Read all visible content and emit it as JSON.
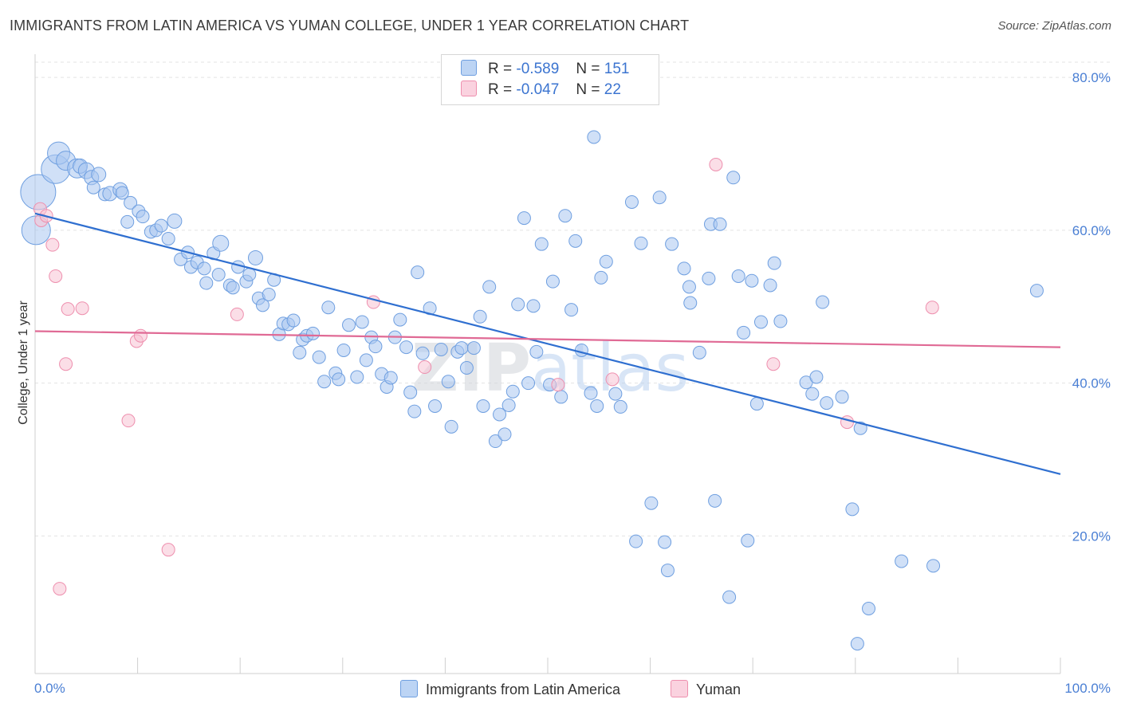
{
  "title": "IMMIGRANTS FROM LATIN AMERICA VS YUMAN COLLEGE, UNDER 1 YEAR CORRELATION CHART",
  "source": "Source: ZipAtlas.com",
  "watermark": {
    "part1": "ZIP",
    "part2": "atlas"
  },
  "legend": {
    "rows": [
      {
        "r_label": "R =",
        "r_value": "-0.589",
        "n_label": "N =",
        "n_value": "151"
      },
      {
        "r_label": "R =",
        "r_value": "-0.047",
        "n_label": "N =",
        "n_value": "22"
      }
    ]
  },
  "colors": {
    "blue_fill": "#a9c7f0",
    "blue_stroke": "#6f9fe0",
    "blue_line": "#2f6fd0",
    "pink_fill": "#f7c3d3",
    "pink_stroke": "#ee8fae",
    "pink_line": "#e06a95",
    "tick_text": "#4a7fd4",
    "grid": "#e3e3e3"
  },
  "chart_data": {
    "type": "scatter",
    "title": "IMMIGRANTS FROM LATIN AMERICA VS YUMAN COLLEGE, UNDER 1 YEAR CORRELATION CHART",
    "xlabel": "",
    "ylabel": "College, Under 1 year",
    "xlim": [
      0,
      100
    ],
    "ylim": [
      2,
      82
    ],
    "x_tick_labels": [
      "0.0%",
      "100.0%"
    ],
    "y_ticks": [
      20,
      40,
      60,
      80
    ],
    "y_tick_labels": [
      "20.0%",
      "40.0%",
      "60.0%",
      "80.0%"
    ],
    "grid": "horizontal dashed",
    "legend_placement": "top-center and bottom",
    "series": [
      {
        "name": "Immigrants from Latin America",
        "r": -0.589,
        "n": 151,
        "trend": {
          "x": [
            0,
            100
          ],
          "y": [
            62.2,
            28.1
          ]
        },
        "points": [
          [
            0.3,
            65.0,
            22
          ],
          [
            0.1,
            60.0,
            18
          ],
          [
            2.0,
            68.0,
            18
          ],
          [
            2.3,
            70.1,
            14
          ],
          [
            3.0,
            69.1,
            12
          ],
          [
            4.1,
            68.1,
            12
          ],
          [
            4.4,
            68.4,
            9
          ],
          [
            5.0,
            67.8,
            10
          ],
          [
            5.5,
            66.9,
            9
          ],
          [
            6.2,
            67.3,
            9
          ],
          [
            5.7,
            65.6,
            8
          ],
          [
            6.8,
            64.7,
            8
          ],
          [
            7.3,
            64.8,
            9
          ],
          [
            8.3,
            65.3,
            9
          ],
          [
            8.5,
            64.9,
            8
          ],
          [
            9.3,
            63.6,
            8
          ],
          [
            10.1,
            62.5,
            8
          ],
          [
            9.0,
            61.1,
            8
          ],
          [
            10.5,
            61.8,
            8
          ],
          [
            11.3,
            59.8,
            8
          ],
          [
            11.8,
            60.0,
            8
          ],
          [
            12.3,
            60.6,
            8
          ],
          [
            13.0,
            58.9,
            8
          ],
          [
            13.6,
            61.2,
            9
          ],
          [
            14.2,
            56.2,
            8
          ],
          [
            14.9,
            57.1,
            8
          ],
          [
            15.2,
            55.2,
            8
          ],
          [
            15.8,
            55.8,
            8
          ],
          [
            16.5,
            55.0,
            8
          ],
          [
            16.7,
            53.1,
            8
          ],
          [
            17.4,
            57.0,
            8
          ],
          [
            17.9,
            54.2,
            8
          ],
          [
            18.1,
            58.3,
            10
          ],
          [
            19.0,
            52.8,
            8
          ],
          [
            19.3,
            52.5,
            8
          ],
          [
            19.8,
            55.2,
            8
          ],
          [
            20.6,
            53.3,
            8
          ],
          [
            20.9,
            54.2,
            8
          ],
          [
            21.5,
            56.4,
            9
          ],
          [
            21.8,
            51.1,
            8
          ],
          [
            22.2,
            50.2,
            8
          ],
          [
            22.8,
            51.6,
            8
          ],
          [
            23.3,
            53.5,
            8
          ],
          [
            23.8,
            46.4,
            8
          ],
          [
            24.2,
            47.8,
            8
          ],
          [
            24.7,
            47.7,
            8
          ],
          [
            25.2,
            48.2,
            8
          ],
          [
            25.8,
            44.0,
            8
          ],
          [
            26.1,
            45.7,
            8
          ],
          [
            26.5,
            46.2,
            8
          ],
          [
            27.1,
            46.5,
            8
          ],
          [
            27.7,
            43.4,
            8
          ],
          [
            28.2,
            40.2,
            8
          ],
          [
            28.6,
            49.9,
            8
          ],
          [
            29.3,
            41.3,
            8
          ],
          [
            29.6,
            40.5,
            8
          ],
          [
            30.1,
            44.3,
            8
          ],
          [
            30.6,
            47.6,
            8
          ],
          [
            31.4,
            40.8,
            8
          ],
          [
            31.9,
            48.0,
            8
          ],
          [
            32.3,
            43.0,
            8
          ],
          [
            32.8,
            46.0,
            8
          ],
          [
            33.2,
            44.8,
            8
          ],
          [
            33.8,
            41.2,
            8
          ],
          [
            34.3,
            39.5,
            8
          ],
          [
            34.7,
            40.7,
            8
          ],
          [
            35.1,
            46.0,
            8
          ],
          [
            35.6,
            48.3,
            8
          ],
          [
            36.2,
            44.7,
            8
          ],
          [
            36.6,
            38.8,
            8
          ],
          [
            37.0,
            36.3,
            8
          ],
          [
            37.3,
            54.5,
            8
          ],
          [
            37.8,
            43.9,
            8
          ],
          [
            38.5,
            49.8,
            8
          ],
          [
            39.0,
            37.0,
            8
          ],
          [
            39.6,
            44.4,
            8
          ],
          [
            40.3,
            40.2,
            8
          ],
          [
            40.6,
            34.3,
            8
          ],
          [
            41.2,
            44.1,
            8
          ],
          [
            41.6,
            44.6,
            8
          ],
          [
            42.1,
            42.0,
            8
          ],
          [
            42.8,
            44.6,
            8
          ],
          [
            43.4,
            48.7,
            8
          ],
          [
            43.7,
            37.0,
            8
          ],
          [
            44.3,
            52.6,
            8
          ],
          [
            44.9,
            32.4,
            8
          ],
          [
            45.3,
            35.9,
            8
          ],
          [
            45.8,
            33.3,
            8
          ],
          [
            46.2,
            37.1,
            8
          ],
          [
            46.6,
            38.9,
            8
          ],
          [
            47.1,
            50.3,
            8
          ],
          [
            47.7,
            61.6,
            8
          ],
          [
            48.1,
            40.0,
            8
          ],
          [
            48.6,
            50.1,
            8
          ],
          [
            48.9,
            44.1,
            8
          ],
          [
            49.4,
            58.2,
            8
          ],
          [
            50.2,
            39.8,
            8
          ],
          [
            50.5,
            53.3,
            8
          ],
          [
            51.3,
            38.2,
            8
          ],
          [
            51.7,
            61.9,
            8
          ],
          [
            52.3,
            49.6,
            8
          ],
          [
            52.7,
            58.6,
            8
          ],
          [
            53.3,
            44.3,
            8
          ],
          [
            54.2,
            38.7,
            8
          ],
          [
            54.5,
            72.2,
            8
          ],
          [
            54.8,
            37.0,
            8
          ],
          [
            55.2,
            53.8,
            8
          ],
          [
            55.7,
            55.9,
            8
          ],
          [
            56.6,
            38.6,
            8
          ],
          [
            57.1,
            36.9,
            8
          ],
          [
            58.2,
            63.7,
            8
          ],
          [
            58.6,
            19.3,
            8
          ],
          [
            59.1,
            58.3,
            8
          ],
          [
            60.1,
            24.3,
            8
          ],
          [
            60.9,
            64.3,
            8
          ],
          [
            61.4,
            19.2,
            8
          ],
          [
            61.7,
            15.5,
            8
          ],
          [
            62.1,
            58.2,
            8
          ],
          [
            63.3,
            55.0,
            8
          ],
          [
            63.8,
            52.6,
            8
          ],
          [
            63.9,
            50.5,
            8
          ],
          [
            64.8,
            44.0,
            8
          ],
          [
            65.7,
            53.7,
            8
          ],
          [
            65.9,
            60.8,
            8
          ],
          [
            66.3,
            24.6,
            8
          ],
          [
            66.8,
            60.8,
            8
          ],
          [
            67.7,
            12.0,
            8
          ],
          [
            68.1,
            66.9,
            8
          ],
          [
            68.6,
            54.0,
            8
          ],
          [
            69.1,
            46.6,
            8
          ],
          [
            69.5,
            19.4,
            8
          ],
          [
            69.9,
            53.4,
            8
          ],
          [
            70.4,
            37.3,
            8
          ],
          [
            70.8,
            48.0,
            8
          ],
          [
            71.7,
            52.8,
            8
          ],
          [
            72.1,
            55.7,
            8
          ],
          [
            72.7,
            48.1,
            8
          ],
          [
            75.2,
            40.1,
            8
          ],
          [
            75.8,
            38.6,
            8
          ],
          [
            76.2,
            40.8,
            8
          ],
          [
            76.8,
            50.6,
            8
          ],
          [
            77.2,
            37.4,
            8
          ],
          [
            78.7,
            38.2,
            8
          ],
          [
            79.7,
            23.5,
            8
          ],
          [
            80.2,
            5.9,
            8
          ],
          [
            80.5,
            34.1,
            8
          ],
          [
            81.3,
            10.5,
            8
          ],
          [
            84.5,
            16.7,
            8
          ],
          [
            87.6,
            16.1,
            8
          ],
          [
            97.7,
            52.1,
            8
          ]
        ]
      },
      {
        "name": "Yuman",
        "r": -0.047,
        "n": 22,
        "trend": {
          "x": [
            0,
            100
          ],
          "y": [
            46.8,
            44.7
          ]
        },
        "points": [
          [
            0.5,
            62.8,
            8
          ],
          [
            0.6,
            61.3,
            8
          ],
          [
            1.1,
            61.9,
            8
          ],
          [
            1.7,
            58.1,
            8
          ],
          [
            2.0,
            54.0,
            8
          ],
          [
            2.4,
            13.1,
            8
          ],
          [
            3.0,
            42.5,
            8
          ],
          [
            3.2,
            49.7,
            8
          ],
          [
            4.6,
            49.8,
            8
          ],
          [
            9.1,
            35.1,
            8
          ],
          [
            9.9,
            45.5,
            8
          ],
          [
            10.3,
            46.2,
            8
          ],
          [
            13.0,
            18.2,
            8
          ],
          [
            19.7,
            49.0,
            8
          ],
          [
            33.0,
            50.6,
            8
          ],
          [
            38.0,
            42.1,
            8
          ],
          [
            51.0,
            39.8,
            8
          ],
          [
            56.3,
            40.5,
            8
          ],
          [
            66.4,
            68.6,
            8
          ],
          [
            72.0,
            42.5,
            8
          ],
          [
            79.2,
            34.9,
            8
          ],
          [
            87.5,
            49.9,
            8
          ]
        ]
      }
    ]
  }
}
